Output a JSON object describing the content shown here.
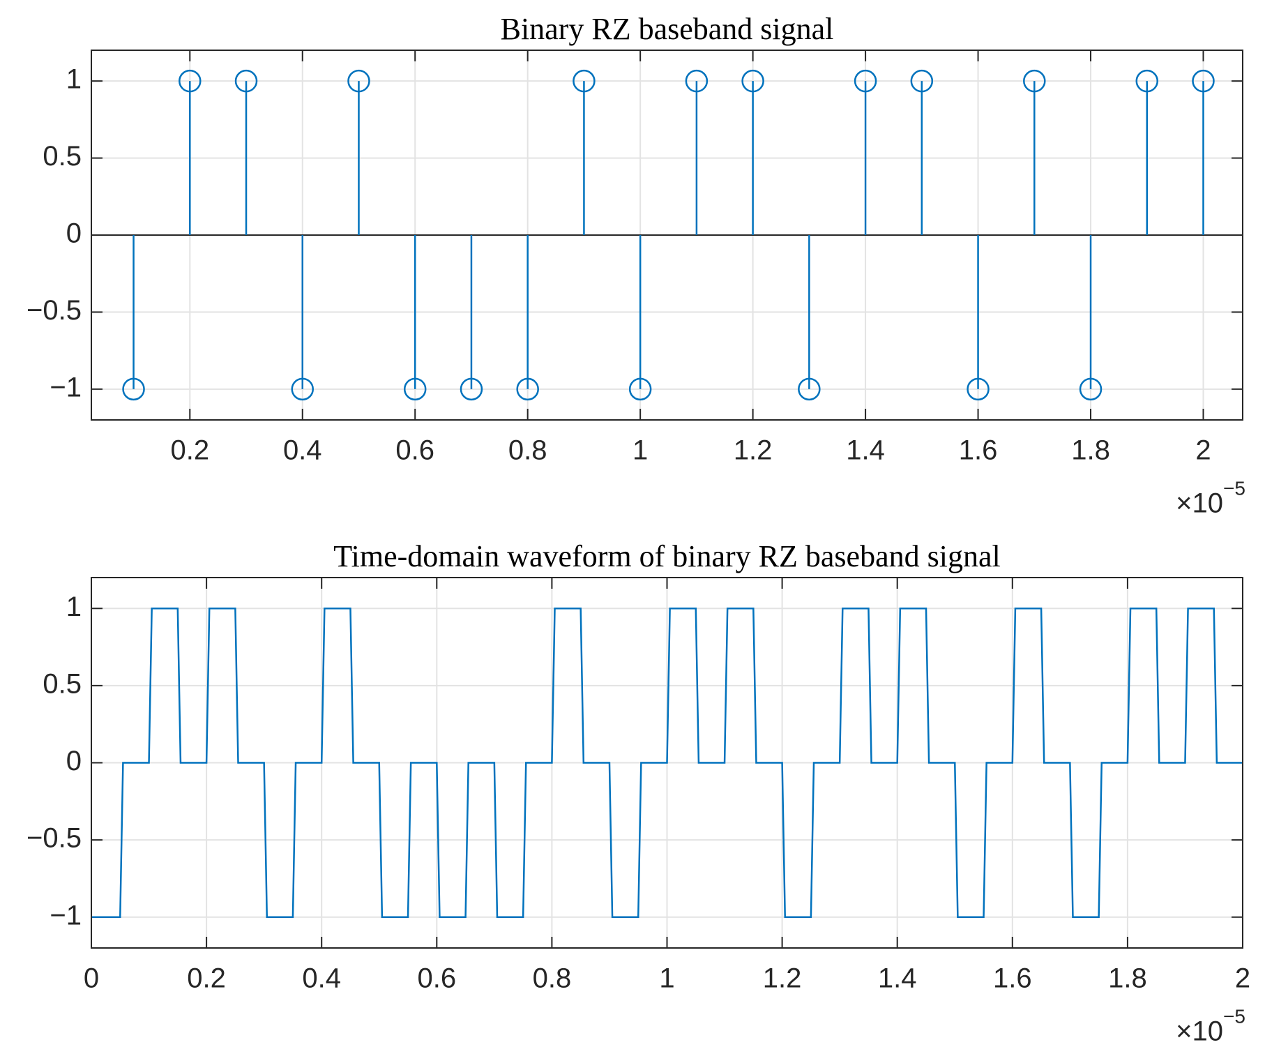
{
  "chart_data": [
    {
      "type": "stem",
      "title": "Binary RZ baseband signal",
      "x": [
        0.1,
        0.2,
        0.3,
        0.4,
        0.5,
        0.6,
        0.7,
        0.8,
        0.9,
        1,
        1.1,
        1.2,
        1.3,
        1.4,
        1.5,
        1.6,
        1.7,
        1.8,
        1.9,
        2
      ],
      "values": [
        -1,
        1,
        1,
        -1,
        1,
        -1,
        -1,
        -1,
        1,
        -1,
        1,
        1,
        -1,
        1,
        1,
        -1,
        1,
        -1,
        1,
        1
      ],
      "color": "#0072bd",
      "xlim": [
        0.025,
        2.07
      ],
      "ylim": [
        -1.2,
        1.2
      ],
      "xticks": [
        0.2,
        0.4,
        0.6,
        0.8,
        1,
        1.2,
        1.4,
        1.6,
        1.8,
        2
      ],
      "yticks": [
        {
          "value": -1,
          "label": "−1"
        },
        {
          "value": -0.5,
          "label": "−0.5"
        },
        0,
        0.5,
        1
      ],
      "grid": true,
      "x_multiplier": "×10",
      "x_exponent": "−5"
    },
    {
      "type": "line",
      "title": "Time-domain waveform of binary RZ baseband signal",
      "x": [
        0,
        0.05,
        0.055,
        0.1,
        0.105,
        0.15,
        0.155,
        0.2,
        0.205,
        0.25,
        0.255,
        0.3,
        0.305,
        0.35,
        0.355,
        0.4,
        0.405,
        0.45,
        0.455,
        0.5,
        0.505,
        0.55,
        0.555,
        0.6,
        0.605,
        0.65,
        0.655,
        0.7,
        0.705,
        0.75,
        0.755,
        0.8,
        0.805,
        0.85,
        0.855,
        0.9,
        0.905,
        0.95,
        0.955,
        1,
        1.005,
        1.05,
        1.055,
        1.1,
        1.105,
        1.15,
        1.155,
        1.2,
        1.205,
        1.25,
        1.255,
        1.3,
        1.305,
        1.35,
        1.355,
        1.4,
        1.405,
        1.45,
        1.455,
        1.5,
        1.505,
        1.55,
        1.555,
        1.6,
        1.605,
        1.65,
        1.655,
        1.7,
        1.705,
        1.75,
        1.755,
        1.8,
        1.805,
        1.85,
        1.855,
        1.9,
        1.905,
        1.95,
        1.955,
        2
      ],
      "values": [
        -1,
        -1,
        0,
        0,
        1,
        1,
        0,
        0,
        1,
        1,
        0,
        0,
        -1,
        -1,
        0,
        0,
        1,
        1,
        0,
        0,
        -1,
        -1,
        0,
        0,
        -1,
        -1,
        0,
        0,
        -1,
        -1,
        0,
        0,
        1,
        1,
        0,
        0,
        -1,
        -1,
        0,
        0,
        1,
        1,
        0,
        0,
        1,
        1,
        0,
        0,
        -1,
        -1,
        0,
        0,
        1,
        1,
        0,
        0,
        1,
        1,
        0,
        0,
        -1,
        -1,
        0,
        0,
        1,
        1,
        0,
        0,
        -1,
        -1,
        0,
        0,
        1,
        1,
        0,
        0,
        1,
        1,
        0,
        0
      ],
      "color": "#0072bd",
      "xlim": [
        0,
        2
      ],
      "ylim": [
        -1.2,
        1.2
      ],
      "xticks": [
        0,
        0.2,
        0.4,
        0.6,
        0.8,
        1,
        1.2,
        1.4,
        1.6,
        1.8,
        2
      ],
      "yticks": [
        {
          "value": -1,
          "label": "−1"
        },
        {
          "value": -0.5,
          "label": "−0.5"
        },
        0,
        0.5,
        1
      ],
      "grid": true,
      "x_multiplier": "×10",
      "x_exponent": "−5"
    }
  ]
}
